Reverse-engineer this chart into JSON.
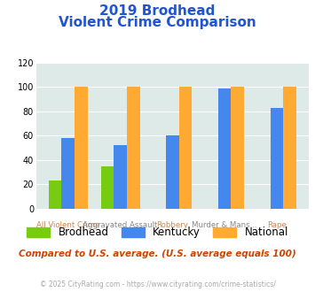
{
  "title_line1": "2019 Brodhead",
  "title_line2": "Violent Crime Comparison",
  "categories": [
    "All Violent Crime",
    "Aggravated Assault",
    "Robbery",
    "Murder & Mans...",
    "Rape"
  ],
  "top_labels": [
    "",
    "Aggravated Assault",
    "",
    "Murder & Mans...",
    ""
  ],
  "bottom_labels": [
    "All Violent Crime",
    "",
    "Robbery",
    "",
    "Rape"
  ],
  "brodhead": [
    23,
    35,
    0,
    0,
    0
  ],
  "kentucky": [
    58,
    52,
    60,
    99,
    83
  ],
  "national": [
    100,
    100,
    100,
    100,
    100
  ],
  "color_brodhead": "#77cc11",
  "color_kentucky": "#4488ee",
  "color_national": "#ffaa33",
  "color_title": "#2255cc",
  "color_background": "#ddeae8",
  "color_note": "#cc4400",
  "color_footer": "#aaaaaa",
  "color_top_label": "#888888",
  "color_bottom_label": "#cc8855",
  "ylim": [
    0,
    120
  ],
  "yticks": [
    0,
    20,
    40,
    60,
    80,
    100,
    120
  ],
  "note_text": "Compared to U.S. average. (U.S. average equals 100)",
  "footer_text": "© 2025 CityRating.com - https://www.cityrating.com/crime-statistics/",
  "legend_labels": [
    "Brodhead",
    "Kentucky",
    "National"
  ]
}
